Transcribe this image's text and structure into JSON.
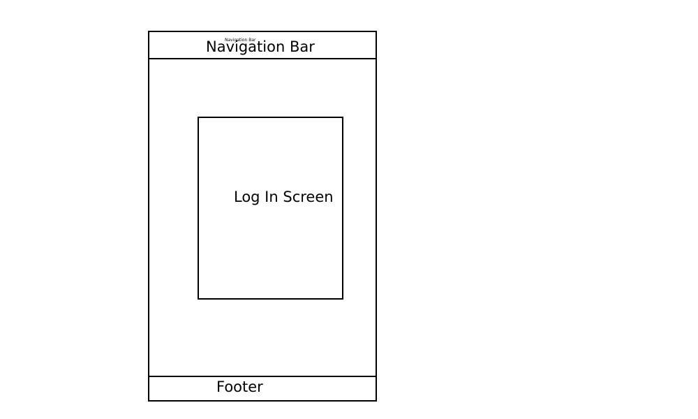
{
  "navbar": {
    "label": "Navigation Bar",
    "tiny_label": "Navigation Bar"
  },
  "login": {
    "label": "Log In Screen"
  },
  "footer": {
    "label": "Footer"
  },
  "colors": {
    "stroke": "#000000",
    "background": "#ffffff"
  }
}
